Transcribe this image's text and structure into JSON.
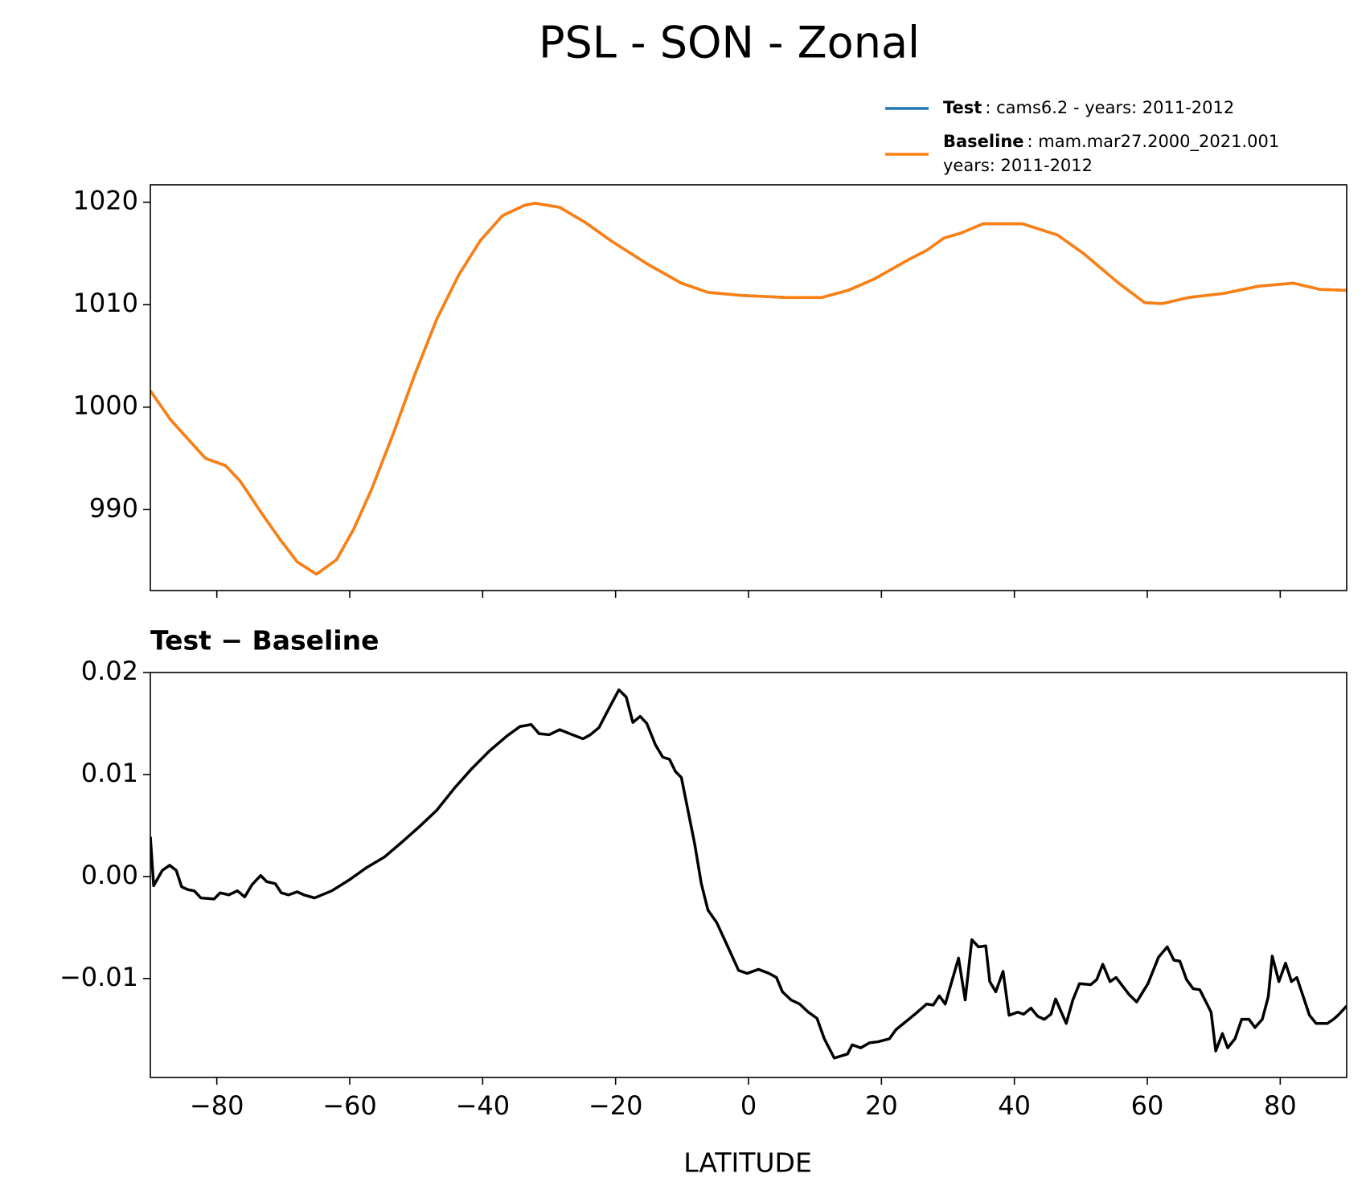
{
  "chart_data": [
    {
      "type": "line",
      "title": "PSL - SON - Zonal",
      "xlim": [
        -90,
        90
      ],
      "xticks": [
        -80,
        -60,
        -40,
        -20,
        0,
        20,
        40,
        60,
        80
      ],
      "xtick_labels": false,
      "ylim": [
        982.1,
        1021.7
      ],
      "yticks": [
        990,
        1000,
        1010,
        1020
      ],
      "x": [
        -90,
        -87,
        -81.7,
        -78.7,
        -76.5,
        -73.2,
        -70.5,
        -67.9,
        -65,
        -62,
        -59.4,
        -56.7,
        -53.4,
        -50.2,
        -46.9,
        -43.6,
        -40.3,
        -37,
        -33.7,
        -32.1,
        -28.4,
        -24.5,
        -20.6,
        -15.3,
        -10.1,
        -6.1,
        -0.9,
        5.7,
        11,
        15,
        18.9,
        24.1,
        26.8,
        29.4,
        32,
        35.3,
        41.2,
        46.5,
        50.4,
        55.7,
        59.6,
        62.2,
        66.2,
        71.5,
        76.7,
        82,
        85.9,
        90
      ],
      "series": [
        {
          "name": "Test",
          "description": [
            ": cams6.2 - years: 2011-2012"
          ],
          "color": "#1f77b4",
          "values": [
            1001.6,
            998.8,
            995.0,
            994.3,
            992.8,
            989.6,
            987.1,
            984.9,
            983.7,
            985.1,
            988.1,
            992.0,
            997.5,
            1003.2,
            1008.6,
            1012.9,
            1016.3,
            1018.7,
            1019.7,
            1019.9,
            1019.5,
            1018.0,
            1016.2,
            1014.0,
            1012.1,
            1011.2,
            1010.9,
            1010.7,
            1010.7,
            1011.4,
            1012.5,
            1014.4,
            1015.3,
            1016.5,
            1017.0,
            1017.9,
            1017.9,
            1016.8,
            1015.0,
            1012.1,
            1010.2,
            1010.1,
            1010.7,
            1011.1,
            1011.8,
            1012.1,
            1011.5,
            1011.4
          ]
        },
        {
          "name": "Baseline",
          "description": [
            ": mam.mar27.2000_2021.001",
            "years: 2011-2012"
          ],
          "color": "#ff7f0e",
          "values": [
            1001.6,
            998.8,
            995.0,
            994.3,
            992.8,
            989.6,
            987.1,
            984.9,
            983.7,
            985.1,
            988.1,
            992.0,
            997.5,
            1003.2,
            1008.6,
            1012.9,
            1016.3,
            1018.7,
            1019.7,
            1019.9,
            1019.5,
            1018.0,
            1016.2,
            1014.0,
            1012.1,
            1011.2,
            1010.9,
            1010.7,
            1010.7,
            1011.4,
            1012.5,
            1014.4,
            1015.3,
            1016.5,
            1017.0,
            1017.9,
            1017.9,
            1016.8,
            1015.0,
            1012.1,
            1010.2,
            1010.1,
            1010.7,
            1011.1,
            1011.8,
            1012.1,
            1011.5,
            1011.4
          ]
        }
      ]
    },
    {
      "type": "line",
      "title": "Test − Baseline",
      "xlabel": "LATITUDE",
      "xlim": [
        -90,
        90
      ],
      "xticks": [
        {
          "value": -80,
          "label": "−80"
        },
        {
          "value": -60,
          "label": "−60"
        },
        {
          "value": -40,
          "label": "−40"
        },
        {
          "value": -20,
          "label": "−20"
        },
        0,
        20,
        40,
        60,
        80
      ],
      "ylim": [
        -0.0197,
        0.02
      ],
      "yticks": [
        {
          "value": -0.01,
          "label": "−0.01"
        },
        {
          "value": 0,
          "label": "0.00"
        },
        0.01,
        0.02
      ],
      "x": [
        -90,
        -89.5,
        -88.2,
        -87.1,
        -86.1,
        -85.3,
        -84.3,
        -83.4,
        -82.4,
        -80.4,
        -79.5,
        -78.2,
        -76.9,
        -75.8,
        -74.7,
        -73.4,
        -72.5,
        -71.2,
        -70.3,
        -69.2,
        -67.9,
        -66.9,
        -65.3,
        -62.7,
        -60,
        -57.4,
        -54.8,
        -52.1,
        -49.5,
        -46.9,
        -44.2,
        -41.6,
        -39,
        -36.3,
        -34.4,
        -32.7,
        -31.5,
        -30,
        -28.4,
        -26.5,
        -24.9,
        -23.8,
        -22.5,
        -20.9,
        -19.5,
        -18.4,
        -17.4,
        -16.3,
        -15.3,
        -14,
        -12.9,
        -11.9,
        -11,
        -10.1,
        -8.1,
        -7.1,
        -6.1,
        -4.8,
        -3.1,
        -1.5,
        -0.2,
        1.5,
        3.1,
        4.2,
        5.1,
        6.4,
        7.7,
        9,
        10.3,
        11.4,
        12.9,
        14.9,
        15.6,
        16.9,
        18.2,
        19.5,
        21.2,
        22.2,
        24.1,
        25.4,
        26.8,
        27.8,
        28.7,
        29.6,
        31.6,
        32.6,
        33.6,
        34.6,
        35.7,
        36.3,
        37.2,
        38.3,
        39.2,
        40.5,
        41.4,
        42.5,
        43.5,
        44.5,
        45.5,
        46.2,
        47.8,
        48.8,
        49.8,
        51.5,
        52.4,
        53.3,
        54.4,
        55.3,
        57.3,
        58.4,
        60.1,
        61.7,
        63,
        64,
        64.9,
        65.9,
        66.9,
        67.9,
        69.6,
        70.3,
        71.3,
        72.1,
        73.2,
        74.2,
        75.3,
        76.2,
        77.3,
        78.2,
        78.8,
        79.8,
        80.8,
        81.7,
        82.5,
        84.4,
        85.4,
        87.1,
        88,
        88.7,
        90
      ],
      "series": [
        {
          "color": "#000000",
          "values": [
            0.0039,
            -0.0009,
            0.0006,
            0.0011,
            0.0006,
            -0.001,
            -0.0013,
            -0.0014,
            -0.0021,
            -0.0022,
            -0.0016,
            -0.0018,
            -0.0014,
            -0.002,
            -0.0008,
            0.0001,
            -0.0005,
            -0.0007,
            -0.0016,
            -0.0018,
            -0.0015,
            -0.0018,
            -0.0021,
            -0.0014,
            -0.0003,
            0.0009,
            0.0019,
            0.0034,
            0.0049,
            0.0065,
            0.0087,
            0.0106,
            0.0123,
            0.0138,
            0.0147,
            0.0149,
            0.014,
            0.0139,
            0.0144,
            0.0139,
            0.0135,
            0.0139,
            0.0146,
            0.0166,
            0.0183,
            0.0176,
            0.0151,
            0.0157,
            0.015,
            0.0129,
            0.0117,
            0.0115,
            0.0103,
            0.0097,
            0.0032,
            -0.0007,
            -0.0033,
            -0.0045,
            -0.0069,
            -0.0092,
            -0.0095,
            -0.0091,
            -0.0095,
            -0.0099,
            -0.0113,
            -0.0121,
            -0.0125,
            -0.0133,
            -0.0139,
            -0.0159,
            -0.0178,
            -0.0174,
            -0.0165,
            -0.0168,
            -0.0163,
            -0.0162,
            -0.0159,
            -0.015,
            -0.014,
            -0.0133,
            -0.0125,
            -0.0126,
            -0.0117,
            -0.0125,
            -0.008,
            -0.0121,
            -0.0062,
            -0.0069,
            -0.0068,
            -0.0103,
            -0.0113,
            -0.0093,
            -0.0136,
            -0.0133,
            -0.0135,
            -0.0129,
            -0.0137,
            -0.014,
            -0.0135,
            -0.012,
            -0.0144,
            -0.0121,
            -0.0105,
            -0.0106,
            -0.0101,
            -0.0086,
            -0.0103,
            -0.0099,
            -0.0116,
            -0.0123,
            -0.0105,
            -0.0079,
            -0.0069,
            -0.0082,
            -0.0083,
            -0.0101,
            -0.011,
            -0.0111,
            -0.0133,
            -0.0171,
            -0.0154,
            -0.0168,
            -0.0159,
            -0.014,
            -0.014,
            -0.0148,
            -0.014,
            -0.0118,
            -0.0078,
            -0.0103,
            -0.0085,
            -0.0103,
            -0.0099,
            -0.0136,
            -0.0144,
            -0.0144,
            -0.014,
            -0.0136,
            -0.0127
          ]
        }
      ]
    }
  ]
}
